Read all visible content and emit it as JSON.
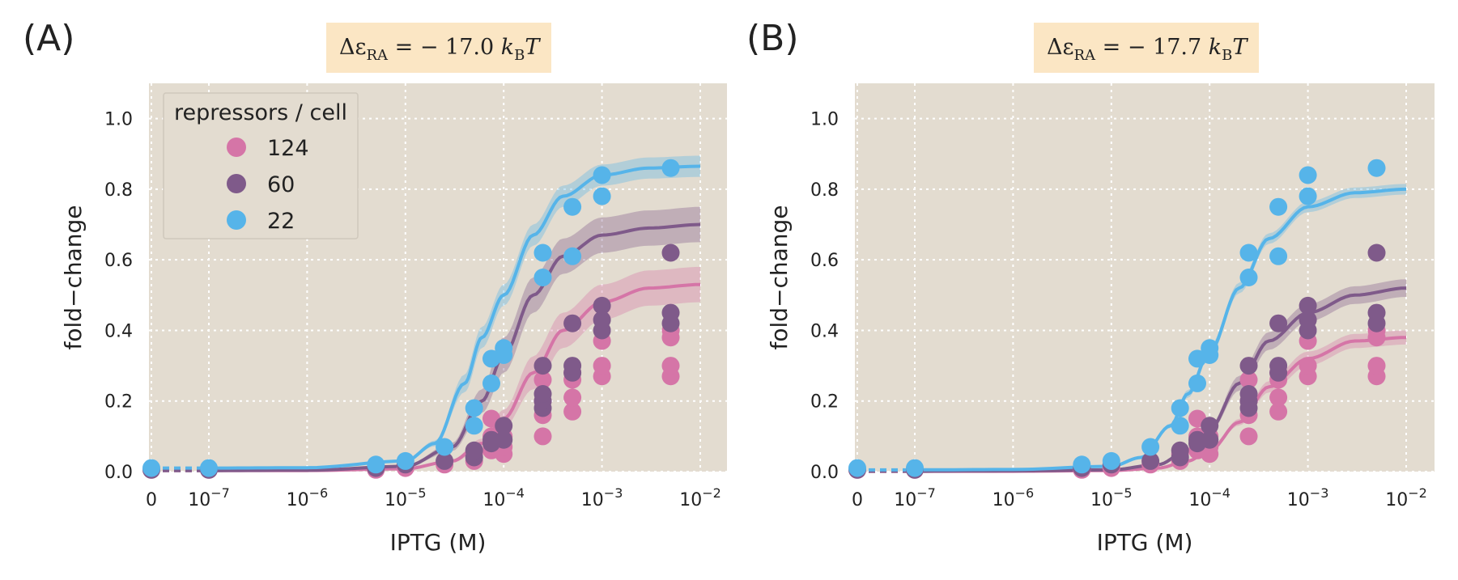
{
  "panels": [
    {
      "letter": "(A)",
      "title": "ΔεRA = − 17.0 kBT",
      "title_parts": {
        "prefix": "Δε",
        "sub1": "RA",
        "middle": " = − 17.0 ",
        "k": "k",
        "sub2": "B",
        "suffix": "T"
      }
    },
    {
      "letter": "(B)",
      "title": "ΔεRA = − 17.7 kBT",
      "title_parts": {
        "prefix": "Δε",
        "sub1": "RA",
        "middle": " = − 17.7 ",
        "k": "k",
        "sub2": "B",
        "suffix": "T"
      }
    }
  ],
  "legend": {
    "title": "repressors / cell",
    "entries": [
      {
        "label": "124",
        "color": "#D575A7"
      },
      {
        "label": "60",
        "color": "#7F5A8A"
      },
      {
        "label": "22",
        "color": "#56B4E9"
      }
    ]
  },
  "colors": {
    "plot_bg": "#E3DCD0",
    "title_bg": "#FBE6C4",
    "grid": "#ffffff"
  },
  "chart_data": [
    {
      "type": "scatter",
      "panel": "(A)",
      "title": "ΔεRA = − 17.0 kBT",
      "xlabel": "IPTG (M)",
      "ylabel": "fold−change",
      "xscale": "log (with 0 shown at left)",
      "x_ticks": [
        "0",
        "10−7",
        "10−6",
        "10−5",
        "10−4",
        "10−3",
        "10−2"
      ],
      "ylim": [
        0,
        1.1
      ],
      "y_ticks": [
        "0.0",
        "0.2",
        "0.4",
        "0.6",
        "0.8",
        "1.0"
      ],
      "grid": true,
      "legend_position": "top-left",
      "series": [
        {
          "name": "124",
          "points": [
            [
              0,
              0.005
            ],
            [
              1e-07,
              0.005
            ],
            [
              5e-06,
              0.005
            ],
            [
              1e-05,
              0.01
            ],
            [
              2.5e-05,
              0.02
            ],
            [
              5e-05,
              0.03
            ],
            [
              5e-05,
              0.05
            ],
            [
              7.5e-05,
              0.06
            ],
            [
              7.5e-05,
              0.1
            ],
            [
              7.5e-05,
              0.15
            ],
            [
              0.0001,
              0.05
            ],
            [
              0.0001,
              0.07
            ],
            [
              0.0001,
              0.1
            ],
            [
              0.00025,
              0.1
            ],
            [
              0.00025,
              0.16
            ],
            [
              0.00025,
              0.2
            ],
            [
              0.00025,
              0.26
            ],
            [
              0.0005,
              0.17
            ],
            [
              0.0005,
              0.21
            ],
            [
              0.0005,
              0.26
            ],
            [
              0.0005,
              0.28
            ],
            [
              0.001,
              0.27
            ],
            [
              0.001,
              0.3
            ],
            [
              0.001,
              0.37
            ],
            [
              0.005,
              0.27
            ],
            [
              0.005,
              0.3
            ],
            [
              0.005,
              0.38
            ],
            [
              0.005,
              0.4
            ]
          ],
          "fit": {
            "x": [
              1e-07,
              1e-06,
              1e-05,
              3e-05,
              6e-05,
              0.0001,
              0.0002,
              0.0004,
              0.001,
              0.003,
              0.01
            ],
            "y": [
              0.003,
              0.003,
              0.008,
              0.03,
              0.08,
              0.15,
              0.28,
              0.4,
              0.48,
              0.52,
              0.53
            ],
            "band": 0.05
          }
        },
        {
          "name": "60",
          "points": [
            [
              0,
              0.005
            ],
            [
              1e-07,
              0.005
            ],
            [
              5e-06,
              0.01
            ],
            [
              1e-05,
              0.02
            ],
            [
              2.5e-05,
              0.03
            ],
            [
              5e-05,
              0.04
            ],
            [
              5e-05,
              0.06
            ],
            [
              7.5e-05,
              0.08
            ],
            [
              7.5e-05,
              0.09
            ],
            [
              0.0001,
              0.09
            ],
            [
              0.0001,
              0.13
            ],
            [
              0.00025,
              0.18
            ],
            [
              0.00025,
              0.2
            ],
            [
              0.00025,
              0.22
            ],
            [
              0.00025,
              0.3
            ],
            [
              0.0005,
              0.28
            ],
            [
              0.0005,
              0.3
            ],
            [
              0.0005,
              0.42
            ],
            [
              0.001,
              0.4
            ],
            [
              0.001,
              0.43
            ],
            [
              0.001,
              0.47
            ],
            [
              0.005,
              0.42
            ],
            [
              0.005,
              0.45
            ],
            [
              0.005,
              0.62
            ]
          ],
          "fit": {
            "x": [
              1e-07,
              1e-06,
              1e-05,
              3e-05,
              6e-05,
              0.0001,
              0.0002,
              0.0004,
              0.001,
              0.003,
              0.01
            ],
            "y": [
              0.003,
              0.004,
              0.015,
              0.07,
              0.2,
              0.33,
              0.5,
              0.61,
              0.67,
              0.69,
              0.7
            ],
            "band": 0.05
          }
        },
        {
          "name": "22",
          "points": [
            [
              0,
              0.01
            ],
            [
              1e-07,
              0.01
            ],
            [
              5e-06,
              0.02
            ],
            [
              1e-05,
              0.03
            ],
            [
              2.5e-05,
              0.07
            ],
            [
              5e-05,
              0.13
            ],
            [
              5e-05,
              0.18
            ],
            [
              7.5e-05,
              0.25
            ],
            [
              7.5e-05,
              0.32
            ],
            [
              0.0001,
              0.33
            ],
            [
              0.0001,
              0.35
            ],
            [
              0.00025,
              0.55
            ],
            [
              0.00025,
              0.62
            ],
            [
              0.0005,
              0.61
            ],
            [
              0.0005,
              0.75
            ],
            [
              0.001,
              0.78
            ],
            [
              0.001,
              0.84
            ],
            [
              0.005,
              0.86
            ]
          ],
          "fit": {
            "x": [
              1e-07,
              1e-06,
              1e-05,
              2e-05,
              4e-05,
              6e-05,
              0.0001,
              0.0002,
              0.0004,
              0.001,
              0.003,
              0.01
            ],
            "y": [
              0.01,
              0.011,
              0.03,
              0.08,
              0.25,
              0.38,
              0.5,
              0.67,
              0.78,
              0.84,
              0.86,
              0.865
            ],
            "band": 0.03
          }
        }
      ]
    },
    {
      "type": "scatter",
      "panel": "(B)",
      "title": "ΔεRA = − 17.7 kBT",
      "xlabel": "IPTG (M)",
      "ylabel": "fold−change",
      "xscale": "log (with 0 shown at left)",
      "x_ticks": [
        "0",
        "10−7",
        "10−6",
        "10−5",
        "10−4",
        "10−3",
        "10−2"
      ],
      "ylim": [
        0,
        1.1
      ],
      "y_ticks": [
        "0.0",
        "0.2",
        "0.4",
        "0.6",
        "0.8",
        "1.0"
      ],
      "grid": true,
      "series": [
        {
          "name": "124",
          "points": [
            [
              0,
              0.005
            ],
            [
              1e-07,
              0.005
            ],
            [
              5e-06,
              0.005
            ],
            [
              1e-05,
              0.01
            ],
            [
              2.5e-05,
              0.02
            ],
            [
              5e-05,
              0.03
            ],
            [
              5e-05,
              0.05
            ],
            [
              7.5e-05,
              0.06
            ],
            [
              7.5e-05,
              0.1
            ],
            [
              7.5e-05,
              0.15
            ],
            [
              0.0001,
              0.05
            ],
            [
              0.0001,
              0.07
            ],
            [
              0.0001,
              0.1
            ],
            [
              0.00025,
              0.1
            ],
            [
              0.00025,
              0.16
            ],
            [
              0.00025,
              0.2
            ],
            [
              0.00025,
              0.26
            ],
            [
              0.0005,
              0.17
            ],
            [
              0.0005,
              0.21
            ],
            [
              0.0005,
              0.26
            ],
            [
              0.0005,
              0.28
            ],
            [
              0.001,
              0.27
            ],
            [
              0.001,
              0.3
            ],
            [
              0.001,
              0.37
            ],
            [
              0.005,
              0.27
            ],
            [
              0.005,
              0.3
            ],
            [
              0.005,
              0.38
            ],
            [
              0.005,
              0.4
            ]
          ],
          "fit": {
            "x": [
              1e-07,
              1e-06,
              1e-05,
              3e-05,
              6e-05,
              0.0001,
              0.0002,
              0.0004,
              0.001,
              0.003,
              0.01
            ],
            "y": [
              0.001,
              0.001,
              0.003,
              0.01,
              0.03,
              0.06,
              0.14,
              0.24,
              0.32,
              0.37,
              0.38
            ],
            "band": 0.02
          }
        },
        {
          "name": "60",
          "points": [
            [
              0,
              0.005
            ],
            [
              1e-07,
              0.005
            ],
            [
              5e-06,
              0.01
            ],
            [
              1e-05,
              0.02
            ],
            [
              2.5e-05,
              0.03
            ],
            [
              5e-05,
              0.04
            ],
            [
              5e-05,
              0.06
            ],
            [
              7.5e-05,
              0.08
            ],
            [
              7.5e-05,
              0.09
            ],
            [
              0.0001,
              0.09
            ],
            [
              0.0001,
              0.13
            ],
            [
              0.00025,
              0.18
            ],
            [
              0.00025,
              0.2
            ],
            [
              0.00025,
              0.22
            ],
            [
              0.00025,
              0.3
            ],
            [
              0.0005,
              0.28
            ],
            [
              0.0005,
              0.3
            ],
            [
              0.0005,
              0.42
            ],
            [
              0.001,
              0.4
            ],
            [
              0.001,
              0.43
            ],
            [
              0.001,
              0.47
            ],
            [
              0.005,
              0.42
            ],
            [
              0.005,
              0.45
            ],
            [
              0.005,
              0.62
            ]
          ],
          "fit": {
            "x": [
              1e-07,
              1e-06,
              1e-05,
              3e-05,
              6e-05,
              0.0001,
              0.0002,
              0.0004,
              0.001,
              0.003,
              0.01
            ],
            "y": [
              0.001,
              0.002,
              0.005,
              0.02,
              0.06,
              0.12,
              0.25,
              0.37,
              0.45,
              0.5,
              0.52
            ],
            "band": 0.025
          }
        },
        {
          "name": "22",
          "points": [
            [
              0,
              0.01
            ],
            [
              1e-07,
              0.01
            ],
            [
              5e-06,
              0.02
            ],
            [
              1e-05,
              0.03
            ],
            [
              2.5e-05,
              0.07
            ],
            [
              5e-05,
              0.13
            ],
            [
              5e-05,
              0.18
            ],
            [
              7.5e-05,
              0.25
            ],
            [
              7.5e-05,
              0.32
            ],
            [
              0.0001,
              0.33
            ],
            [
              0.0001,
              0.35
            ],
            [
              0.00025,
              0.55
            ],
            [
              0.00025,
              0.62
            ],
            [
              0.0005,
              0.61
            ],
            [
              0.0005,
              0.75
            ],
            [
              0.001,
              0.78
            ],
            [
              0.001,
              0.84
            ],
            [
              0.005,
              0.86
            ]
          ],
          "fit": {
            "x": [
              1e-07,
              1e-06,
              1e-05,
              2e-05,
              4e-05,
              6e-05,
              0.0001,
              0.0002,
              0.0004,
              0.001,
              0.003,
              0.01
            ],
            "y": [
              0.005,
              0.006,
              0.015,
              0.04,
              0.13,
              0.22,
              0.34,
              0.52,
              0.66,
              0.75,
              0.79,
              0.8
            ],
            "band": 0.015
          }
        }
      ]
    }
  ]
}
